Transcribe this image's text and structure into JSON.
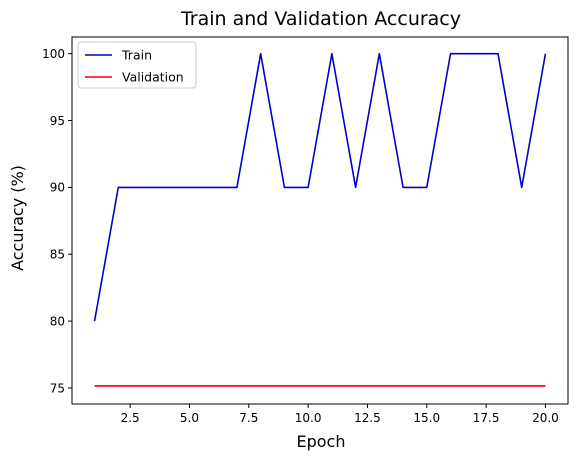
{
  "chart_data": {
    "type": "line",
    "title": "Train and Validation Accuracy",
    "xlabel": "Epoch",
    "ylabel": "Accuracy (%)",
    "xlim": [
      0.05,
      20.95
    ],
    "ylim": [
      73.8,
      101.25
    ],
    "xticks": [
      2.5,
      5.0,
      7.5,
      10.0,
      12.5,
      15.0,
      17.5,
      20.0
    ],
    "xtick_labels": [
      "2.5",
      "5.0",
      "7.5",
      "10.0",
      "12.5",
      "15.0",
      "17.5",
      "20.0"
    ],
    "yticks": [
      75,
      80,
      85,
      90,
      95,
      100
    ],
    "ytick_labels": [
      "75",
      "80",
      "85",
      "90",
      "95",
      "100"
    ],
    "grid": false,
    "legend_position": "top-left",
    "x": [
      1,
      2,
      3,
      4,
      5,
      6,
      7,
      8,
      9,
      10,
      11,
      12,
      13,
      14,
      15,
      16,
      17,
      18,
      19,
      20
    ],
    "series": [
      {
        "name": "Train",
        "color": "#0000cc",
        "values": [
          80,
          90,
          90,
          90,
          90,
          90,
          90,
          100,
          90,
          90,
          100,
          90,
          100,
          90,
          90,
          100,
          100,
          100,
          90,
          100
        ]
      },
      {
        "name": "Validation",
        "color": "#ee0000",
        "values": [
          75.15,
          75.15,
          75.15,
          75.15,
          75.15,
          75.15,
          75.15,
          75.15,
          75.15,
          75.15,
          75.15,
          75.15,
          75.15,
          75.15,
          75.15,
          75.15,
          75.15,
          75.15,
          75.15,
          75.15
        ]
      }
    ]
  }
}
